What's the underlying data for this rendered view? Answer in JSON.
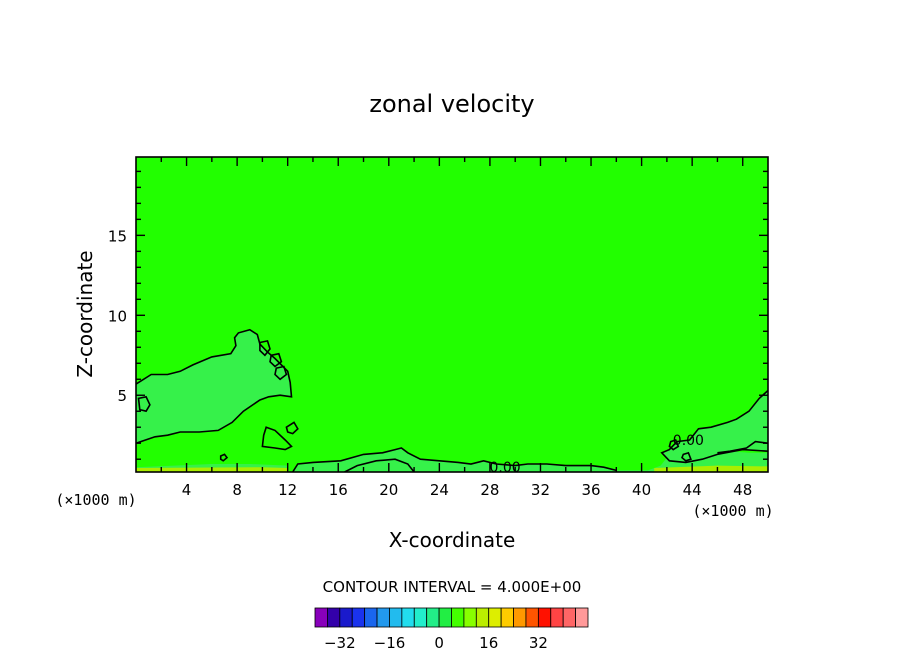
{
  "chart_data": {
    "type": "contour",
    "title": "zonal velocity",
    "xlabel": "X-coordinate",
    "ylabel": "Z-coordinate",
    "x_unit_left": "(×1000 m)",
    "x_unit_right": "(×1000 m)",
    "xlim": [
      0,
      50
    ],
    "ylim": [
      0.2,
      19.9
    ],
    "x_ticks": [
      4,
      8,
      12,
      16,
      20,
      24,
      28,
      32,
      36,
      40,
      44,
      48
    ],
    "y_ticks": [
      5,
      10,
      15
    ],
    "contour_interval_text": "CONTOUR INTERVAL = 4.000E+00",
    "contour_labels": [
      {
        "text": "0.00",
        "x": 29.2,
        "z": 0.5
      },
      {
        "text": "0.00",
        "x": 43.7,
        "z": 2.2
      }
    ],
    "background_color": "#22ff00",
    "regions": [
      {
        "name": "left-low-velocity-band",
        "color": "#36f14a",
        "level": -4,
        "points": [
          [
            0,
            5.7
          ],
          [
            1.2,
            6.3
          ],
          [
            2.5,
            6.3
          ],
          [
            3.5,
            6.5
          ],
          [
            4.5,
            6.9
          ],
          [
            6.0,
            7.4
          ],
          [
            7.5,
            7.6
          ],
          [
            7.9,
            8.1
          ],
          [
            7.8,
            8.6
          ],
          [
            8.1,
            8.9
          ],
          [
            9.0,
            9.1
          ],
          [
            9.6,
            8.8
          ],
          [
            9.8,
            8.2
          ],
          [
            10.4,
            7.7
          ],
          [
            11.0,
            7.3
          ],
          [
            12.0,
            6.5
          ],
          [
            12.2,
            5.8
          ],
          [
            12.3,
            4.9
          ],
          [
            11.4,
            5.0
          ],
          [
            10.5,
            4.9
          ],
          [
            9.8,
            4.7
          ],
          [
            8.5,
            4.0
          ],
          [
            7.6,
            3.3
          ],
          [
            6.5,
            2.8
          ],
          [
            5.0,
            2.7
          ],
          [
            3.5,
            2.7
          ],
          [
            2.5,
            2.5
          ],
          [
            1.5,
            2.4
          ],
          [
            0,
            2.0
          ]
        ]
      },
      {
        "name": "left-surface-band",
        "color": "#36f14a",
        "level": -4,
        "points": [
          [
            0,
            0.5
          ],
          [
            3,
            0.6
          ],
          [
            6,
            0.7
          ],
          [
            9,
            0.7
          ],
          [
            12,
            0.6
          ],
          [
            12,
            0.2
          ],
          [
            0,
            0.2
          ]
        ]
      },
      {
        "name": "bottom-band",
        "color": "#36f14a",
        "level": -4,
        "points": [
          [
            12.4,
            0.2
          ],
          [
            12.8,
            0.7
          ],
          [
            14,
            0.8
          ],
          [
            16.2,
            0.9
          ],
          [
            18,
            1.3
          ],
          [
            19.5,
            1.4
          ],
          [
            20.5,
            1.6
          ],
          [
            21,
            1.7
          ],
          [
            21.5,
            1.4
          ],
          [
            22.5,
            1.0
          ],
          [
            24,
            0.9
          ],
          [
            25.5,
            0.8
          ],
          [
            26.5,
            0.7
          ],
          [
            27.5,
            0.9
          ],
          [
            28.5,
            0.7
          ],
          [
            30,
            0.6
          ],
          [
            31,
            0.7
          ],
          [
            32.5,
            0.7
          ],
          [
            34,
            0.6
          ],
          [
            36,
            0.6
          ],
          [
            37,
            0.5
          ],
          [
            38,
            0.3
          ],
          [
            40.5,
            0.3
          ],
          [
            41.5,
            0.6
          ],
          [
            42.2,
            1.3
          ],
          [
            43,
            1.2
          ],
          [
            44.2,
            1.5
          ],
          [
            45,
            1.2
          ],
          [
            46,
            1.3
          ],
          [
            47,
            1.5
          ],
          [
            48.5,
            1.4
          ],
          [
            50,
            1.4
          ],
          [
            50,
            0.2
          ]
        ]
      },
      {
        "name": "right-low-velocity-band",
        "color": "#36f14a",
        "level": -4,
        "points": [
          [
            50,
            5.3
          ],
          [
            49.3,
            4.8
          ],
          [
            48.5,
            4.0
          ],
          [
            47.5,
            3.5
          ],
          [
            46.8,
            3.3
          ],
          [
            45.5,
            3.0
          ],
          [
            44.5,
            2.9
          ],
          [
            43.8,
            2.2
          ],
          [
            42.8,
            2.1
          ],
          [
            42.2,
            1.6
          ],
          [
            41.6,
            1.4
          ],
          [
            42.2,
            0.9
          ],
          [
            43.5,
            0.8
          ],
          [
            44.8,
            1.0
          ],
          [
            46,
            1.3
          ],
          [
            48,
            1.6
          ],
          [
            50,
            1.5
          ]
        ]
      }
    ],
    "contour_lines": [
      {
        "name": "contour-left-upper",
        "closed": false,
        "points": [
          [
            0,
            5.7
          ],
          [
            1.2,
            6.3
          ],
          [
            2.5,
            6.3
          ],
          [
            3.5,
            6.5
          ],
          [
            4.5,
            6.9
          ],
          [
            6.0,
            7.4
          ],
          [
            7.5,
            7.6
          ],
          [
            7.9,
            8.1
          ],
          [
            7.8,
            8.6
          ],
          [
            8.1,
            8.9
          ],
          [
            9.0,
            9.1
          ],
          [
            9.6,
            8.8
          ],
          [
            9.8,
            8.2
          ],
          [
            10.4,
            7.7
          ],
          [
            11.0,
            7.3
          ],
          [
            12.0,
            6.5
          ],
          [
            12.2,
            5.8
          ],
          [
            12.3,
            4.9
          ],
          [
            11.4,
            5.0
          ],
          [
            10.5,
            4.9
          ],
          [
            9.8,
            4.7
          ],
          [
            8.5,
            4.0
          ],
          [
            7.6,
            3.3
          ],
          [
            6.5,
            2.8
          ],
          [
            5.0,
            2.7
          ],
          [
            3.5,
            2.7
          ],
          [
            2.5,
            2.5
          ],
          [
            1.5,
            2.4
          ],
          [
            0,
            2.0
          ]
        ]
      },
      {
        "name": "contour-left-eddy",
        "closed": true,
        "points": [
          [
            0.2,
            4.8
          ],
          [
            0.8,
            4.9
          ],
          [
            1.1,
            4.4
          ],
          [
            0.8,
            4.0
          ],
          [
            0.3,
            4.1
          ]
        ]
      },
      {
        "name": "contour-oval-1",
        "closed": true,
        "points": [
          [
            9.8,
            8.3
          ],
          [
            10.4,
            8.4
          ],
          [
            10.6,
            7.9
          ],
          [
            10.2,
            7.5
          ],
          [
            9.8,
            7.8
          ]
        ]
      },
      {
        "name": "contour-oval-2",
        "closed": true,
        "points": [
          [
            10.7,
            7.5
          ],
          [
            11.3,
            7.6
          ],
          [
            11.5,
            7.1
          ],
          [
            11.0,
            6.8
          ],
          [
            10.6,
            7.1
          ]
        ]
      },
      {
        "name": "contour-oval-3",
        "closed": true,
        "points": [
          [
            11.1,
            6.7
          ],
          [
            11.7,
            6.8
          ],
          [
            11.9,
            6.3
          ],
          [
            11.4,
            6.0
          ],
          [
            11.0,
            6.3
          ]
        ]
      },
      {
        "name": "contour-left-mid-eddy",
        "closed": true,
        "points": [
          [
            10.3,
            3.0
          ],
          [
            11.0,
            2.8
          ],
          [
            11.8,
            2.2
          ],
          [
            12.3,
            1.8
          ],
          [
            11.8,
            1.6
          ],
          [
            11.0,
            1.7
          ],
          [
            10.0,
            1.8
          ],
          [
            10.1,
            2.5
          ]
        ]
      },
      {
        "name": "contour-left-mid-eddy-2",
        "closed": true,
        "points": [
          [
            11.9,
            3.0
          ],
          [
            12.5,
            3.3
          ],
          [
            12.8,
            2.9
          ],
          [
            12.4,
            2.6
          ],
          [
            12.0,
            2.7
          ]
        ]
      },
      {
        "name": "contour-small-dot",
        "closed": true,
        "points": [
          [
            6.7,
            1.2
          ],
          [
            7.0,
            1.3
          ],
          [
            7.2,
            1.1
          ],
          [
            6.9,
            0.9
          ],
          [
            6.7,
            1.0
          ]
        ]
      },
      {
        "name": "contour-bottom",
        "closed": false,
        "points": [
          [
            12.4,
            0.2
          ],
          [
            12.8,
            0.7
          ],
          [
            14,
            0.8
          ],
          [
            16.2,
            0.9
          ],
          [
            18,
            1.3
          ],
          [
            19.5,
            1.4
          ],
          [
            20.5,
            1.6
          ],
          [
            21,
            1.7
          ],
          [
            21.5,
            1.4
          ],
          [
            22.5,
            1.0
          ],
          [
            24,
            0.9
          ],
          [
            25.5,
            0.8
          ],
          [
            26.5,
            0.7
          ],
          [
            27.5,
            0.9
          ],
          [
            28.5,
            0.7
          ],
          [
            30,
            0.6
          ],
          [
            31,
            0.7
          ],
          [
            32.5,
            0.7
          ],
          [
            34,
            0.6
          ],
          [
            36,
            0.6
          ],
          [
            37,
            0.5
          ],
          [
            38,
            0.3
          ]
        ]
      },
      {
        "name": "contour-bottom-inner",
        "closed": false,
        "points": [
          [
            16.5,
            0.2
          ],
          [
            17.5,
            0.6
          ],
          [
            19,
            0.9
          ],
          [
            20.5,
            1.0
          ],
          [
            21.5,
            0.7
          ],
          [
            22,
            0.2
          ]
        ]
      },
      {
        "name": "contour-right-upper",
        "closed": false,
        "points": [
          [
            50,
            5.3
          ],
          [
            49.3,
            4.8
          ],
          [
            48.5,
            4.0
          ],
          [
            47.5,
            3.5
          ],
          [
            46.8,
            3.3
          ],
          [
            45.5,
            3.0
          ],
          [
            44.5,
            2.9
          ],
          [
            43.8,
            2.2
          ],
          [
            42.8,
            2.1
          ],
          [
            42.2,
            1.6
          ],
          [
            41.6,
            1.4
          ],
          [
            42.2,
            0.9
          ],
          [
            43.5,
            0.8
          ],
          [
            44.8,
            1.0
          ],
          [
            46,
            1.3
          ],
          [
            48,
            1.6
          ],
          [
            50,
            1.5
          ]
        ]
      },
      {
        "name": "contour-right-inner",
        "closed": false,
        "points": [
          [
            50,
            2.0
          ],
          [
            49.0,
            2.1
          ],
          [
            48.3,
            1.7
          ],
          [
            47.0,
            1.5
          ],
          [
            46,
            1.4
          ]
        ]
      },
      {
        "name": "contour-right-eddy",
        "closed": true,
        "points": [
          [
            42.3,
            2.1
          ],
          [
            42.7,
            2.2
          ],
          [
            42.9,
            1.8
          ],
          [
            42.5,
            1.6
          ],
          [
            42.2,
            1.8
          ]
        ]
      },
      {
        "name": "contour-right-eddy-2",
        "closed": true,
        "points": [
          [
            43.3,
            1.3
          ],
          [
            43.7,
            1.4
          ],
          [
            43.9,
            1.0
          ],
          [
            43.5,
            0.9
          ],
          [
            43.2,
            1.1
          ]
        ]
      }
    ],
    "colorbar": {
      "colors": [
        "#8800bb",
        "#3300aa",
        "#1a1acc",
        "#1a33ee",
        "#1a66ee",
        "#2299ee",
        "#22bbee",
        "#22ddee",
        "#22eecc",
        "#22ee88",
        "#22ee44",
        "#44ff00",
        "#88ff00",
        "#bbee00",
        "#ddee00",
        "#ffcc00",
        "#ff9900",
        "#ff5500",
        "#ff1100",
        "#ff4444",
        "#ff6666",
        "#ff9999"
      ],
      "tick_labels": [
        "−32",
        "−16",
        "0",
        "16",
        "32"
      ],
      "tick_values": [
        -32,
        -16,
        0,
        16,
        32
      ],
      "range": [
        -40,
        48
      ]
    }
  }
}
